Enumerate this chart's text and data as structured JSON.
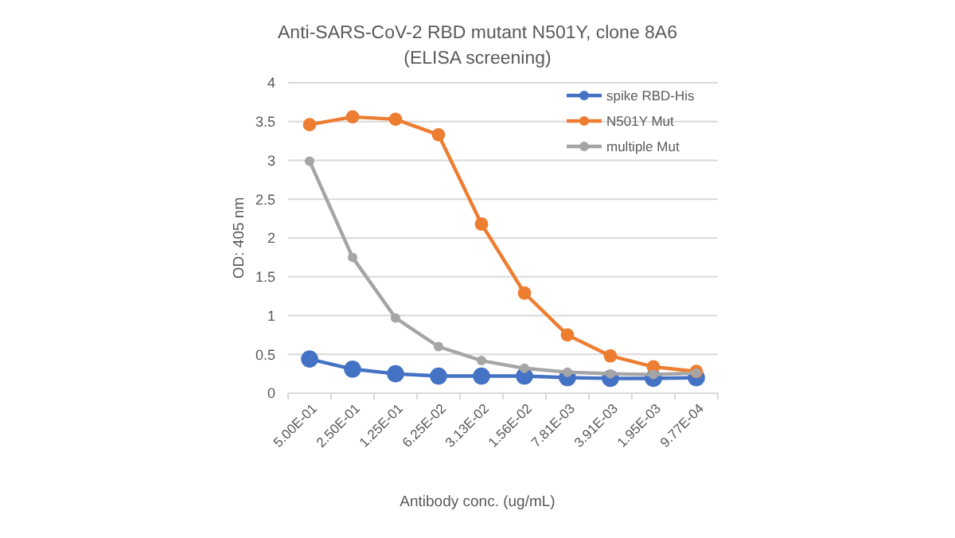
{
  "chart_data": {
    "type": "line",
    "title": "Anti-SARS-CoV-2 RBD mutant N501Y, clone 8A6",
    "subtitle": "(ELISA screening)",
    "xlabel": "Antibody conc. (ug/mL)",
    "ylabel": "OD: 405 nm",
    "categories": [
      "5.00E-01",
      "2.50E-01",
      "1.25E-01",
      "6.25E-02",
      "3.13E-02",
      "1.56E-02",
      "7.81E-03",
      "3.91E-03",
      "1.95E-03",
      "9.77E-04"
    ],
    "series": [
      {
        "name": "spike RBD-His",
        "color": "#4472c4",
        "values": [
          0.44,
          0.31,
          0.25,
          0.22,
          0.22,
          0.22,
          0.2,
          0.19,
          0.19,
          0.2
        ]
      },
      {
        "name": "N501Y Mut",
        "color": "#ed7d31",
        "values": [
          3.46,
          3.56,
          3.53,
          3.33,
          2.18,
          1.29,
          0.75,
          0.48,
          0.34,
          0.28
        ]
      },
      {
        "name": "multiple Mut",
        "color": "#a5a5a5",
        "values": [
          2.99,
          1.75,
          0.97,
          0.6,
          0.42,
          0.32,
          0.27,
          0.25,
          0.24,
          0.26
        ]
      }
    ],
    "ylim": [
      0,
      4
    ],
    "yticks": [
      0,
      0.5,
      1,
      1.5,
      2,
      2.5,
      3,
      3.5,
      4
    ],
    "grid": "y",
    "legend": "top right",
    "marker": "circle",
    "line_style": "solid"
  }
}
